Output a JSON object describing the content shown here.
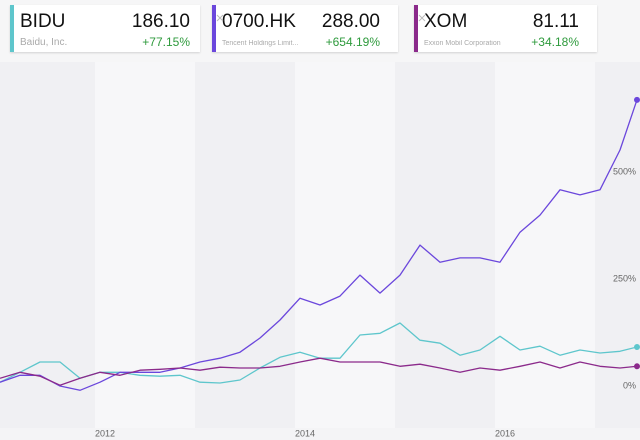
{
  "chart_data": {
    "type": "line",
    "x": [
      2010.95,
      2011.15,
      2011.35,
      2011.55,
      2011.75,
      2011.95,
      2012.15,
      2012.35,
      2012.55,
      2012.75,
      2012.95,
      2013.15,
      2013.35,
      2013.55,
      2013.75,
      2013.95,
      2014.15,
      2014.35,
      2014.55,
      2014.75,
      2014.95,
      2015.15,
      2015.35,
      2015.55,
      2015.75,
      2015.95,
      2016.15,
      2016.35,
      2016.55,
      2016.75,
      2016.95,
      2017.15,
      2017.32
    ],
    "xlim": [
      2010.95,
      2017.35
    ],
    "xticks": [
      2012,
      2014,
      2016
    ],
    "ylim": [
      -100,
      752
    ],
    "yticks": [
      {
        "value": 0,
        "label": "0%"
      },
      {
        "value": 250,
        "label": "250%"
      },
      {
        "value": 500,
        "label": "500%"
      }
    ],
    "series": [
      {
        "name": "BIDU",
        "company": "Baidu, Inc.",
        "price": "186.10",
        "change": "+77.15%",
        "color": "#5ec6cc",
        "values": [
          7,
          30,
          54,
          54,
          16,
          30,
          30,
          23,
          21,
          23,
          7,
          5,
          12,
          40,
          65,
          77,
          63,
          63,
          117,
          121,
          145,
          105,
          98,
          70,
          82,
          114,
          82,
          91,
          70,
          82,
          75,
          79,
          89
        ]
      },
      {
        "name": "0700.HK",
        "company": "Tencent Holdings Limit...",
        "price": "288.00",
        "change": "+654.19%",
        "color": "#6b47dc",
        "values": [
          7,
          23,
          23,
          -2,
          -12,
          7,
          30,
          30,
          30,
          40,
          54,
          63,
          77,
          110,
          152,
          203,
          187,
          208,
          257,
          215,
          257,
          327,
          287,
          297,
          297,
          287,
          357,
          397,
          456,
          444,
          456,
          549,
          666
        ]
      },
      {
        "name": "XOM",
        "company": "Exxon Mobil Corporation",
        "price": "81.11",
        "change": "+34.18%",
        "color": "#8b2a8b",
        "values": [
          16,
          30,
          21,
          0,
          16,
          30,
          23,
          35,
          37,
          40,
          35,
          42,
          40,
          40,
          44,
          54,
          63,
          54,
          54,
          54,
          44,
          49,
          40,
          30,
          40,
          35,
          44,
          54,
          40,
          54,
          44,
          40,
          44
        ]
      }
    ]
  }
}
